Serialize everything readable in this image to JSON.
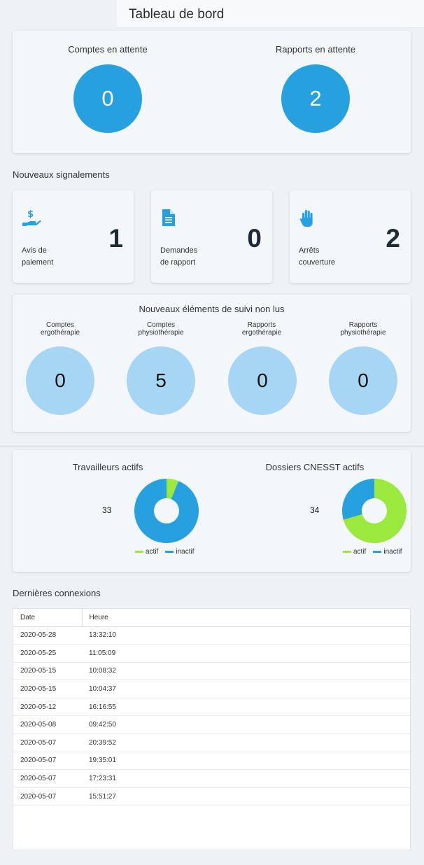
{
  "header": {
    "title": "Tableau de bord"
  },
  "pending": {
    "accounts": {
      "label": "Comptes en attente",
      "value": "0"
    },
    "reports": {
      "label": "Rapports en attente",
      "value": "2"
    }
  },
  "signalements": {
    "title": "Nouveaux signalements",
    "cards": [
      {
        "icon": "hand-dollar-icon",
        "label_line1": "Avis de",
        "label_line2": "paiement",
        "value": "1"
      },
      {
        "icon": "document-icon",
        "label_line1": "Demandes",
        "label_line2": "de rapport",
        "value": "0"
      },
      {
        "icon": "hand-stop-icon",
        "label_line1": "Arrêts",
        "label_line2": "couverture",
        "value": "2"
      }
    ]
  },
  "suivi": {
    "title": "Nouveaux éléments de suivi non lus",
    "items": [
      {
        "line1": "Comptes",
        "line2": "ergothérapie",
        "value": "0"
      },
      {
        "line1": "Comptes",
        "line2": "physiothérapie",
        "value": "5"
      },
      {
        "line1": "Rapports",
        "line2": "ergothérapie",
        "value": "0"
      },
      {
        "line1": "Rapports",
        "line2": "physiothérapie",
        "value": "0"
      }
    ]
  },
  "colors": {
    "primary": "#27a0df",
    "light": "#a6d6f3",
    "active": "#9be83f",
    "inactive": "#27a0df"
  },
  "chart_data": [
    {
      "type": "pie",
      "title": "Travailleurs actifs",
      "total_label": "33",
      "categories": [
        "actif",
        "inactif"
      ],
      "values": [
        2,
        31
      ],
      "colors": [
        "#9be83f",
        "#27a0df"
      ],
      "legend": "bottom"
    },
    {
      "type": "pie",
      "title": "Dossiers CNESST actifs",
      "total_label": "34",
      "categories": [
        "actif",
        "inactif"
      ],
      "values": [
        24,
        10
      ],
      "colors": [
        "#9be83f",
        "#27a0df"
      ],
      "legend": "bottom"
    }
  ],
  "connexions": {
    "title": "Dernières connexions",
    "columns": [
      "Date",
      "Heure"
    ],
    "rows": [
      [
        "2020-05-28",
        "13:32:10"
      ],
      [
        "2020-05-25",
        "11:05:09"
      ],
      [
        "2020-05-15",
        "10:08:32"
      ],
      [
        "2020-05-15",
        "10:04:37"
      ],
      [
        "2020-05-12",
        "16:16:55"
      ],
      [
        "2020-05-08",
        "09:42:50"
      ],
      [
        "2020-05-07",
        "20:39:52"
      ],
      [
        "2020-05-07",
        "19:35:01"
      ],
      [
        "2020-05-07",
        "17:23:31"
      ],
      [
        "2020-05-07",
        "15:51:27"
      ]
    ]
  }
}
